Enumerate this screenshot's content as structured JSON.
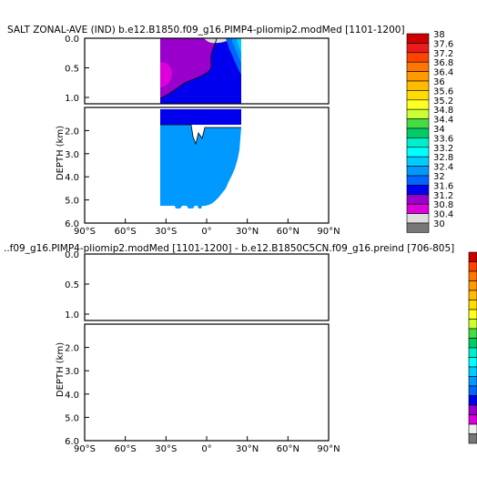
{
  "chart_data": [
    {
      "type": "contour",
      "title": "SALT ZONAL-AVE (IND) b.e12.B1850.f09_g16.PIMP4-pliomip2.modMed [1101-1200]",
      "ylabel": "DEPTH (km)",
      "xlabel": "",
      "xticks": [
        "90°S",
        "60°S",
        "30°S",
        "0°",
        "30°N",
        "60°N",
        "90°N"
      ],
      "xlim": [
        -90,
        90
      ],
      "upper_panel": {
        "ylim": [
          0.0,
          1.0
        ],
        "yticks": [
          "0.0",
          "0.5",
          "1.0"
        ]
      },
      "lower_panel": {
        "ylim": [
          1.0,
          6.0
        ],
        "yticks": [
          "2.0",
          "3.0",
          "4.0",
          "5.0",
          "6.0"
        ]
      },
      "data_extent_lat": [
        -34,
        26
      ],
      "colorbar": {
        "labels": [
          "38",
          "37.6",
          "37.2",
          "36.8",
          "36.4",
          "36",
          "35.6",
          "35.2",
          "34.8",
          "34.4",
          "34",
          "33.6",
          "33.2",
          "32.8",
          "32.4",
          "32",
          "31.6",
          "31.2",
          "30.8",
          "30.4",
          "30"
        ],
        "colors": [
          "#cc0000",
          "#e81c1c",
          "#ff4400",
          "#ff7700",
          "#ff9900",
          "#ffbb00",
          "#ffdd00",
          "#ffff22",
          "#ccff33",
          "#44dd44",
          "#00cc66",
          "#00eecc",
          "#00ffff",
          "#00ccff",
          "#0099ff",
          "#0066ff",
          "#0000ee",
          "#9900cc",
          "#dd00dd",
          "#dddddd",
          "#777777"
        ]
      }
    },
    {
      "type": "contour",
      "title": "..f09_g16.PIMP4-pliomip2.modMed [1101-1200] - b.e12.B1850C5CN.f09_g16.preind [706-805]",
      "ylabel": "DEPTH (km)",
      "xlabel": "",
      "xticks": [
        "90°S",
        "60°S",
        "30°S",
        "0°",
        "30°N",
        "60°N",
        "90°N"
      ],
      "xlim": [
        -90,
        90
      ],
      "upper_panel": {
        "ylim": [
          0.0,
          1.0
        ],
        "yticks": [
          "0.0",
          "0.5",
          "1.0"
        ]
      },
      "lower_panel": {
        "ylim": [
          1.0,
          6.0
        ],
        "yticks": [
          "2.0",
          "3.0",
          "4.0",
          "5.0",
          "6.0"
        ]
      },
      "colorbar_colors": [
        "#cc0000",
        "#ff4400",
        "#ff7700",
        "#ff9900",
        "#ffbb00",
        "#ffdd00",
        "#ffff22",
        "#ccff33",
        "#44dd44",
        "#00cc66",
        "#00eecc",
        "#00ffff",
        "#00ccff",
        "#0099ff",
        "#0066ff",
        "#0000ee",
        "#9900cc",
        "#dd00dd",
        "#eeeeee",
        "#777777"
      ]
    }
  ]
}
